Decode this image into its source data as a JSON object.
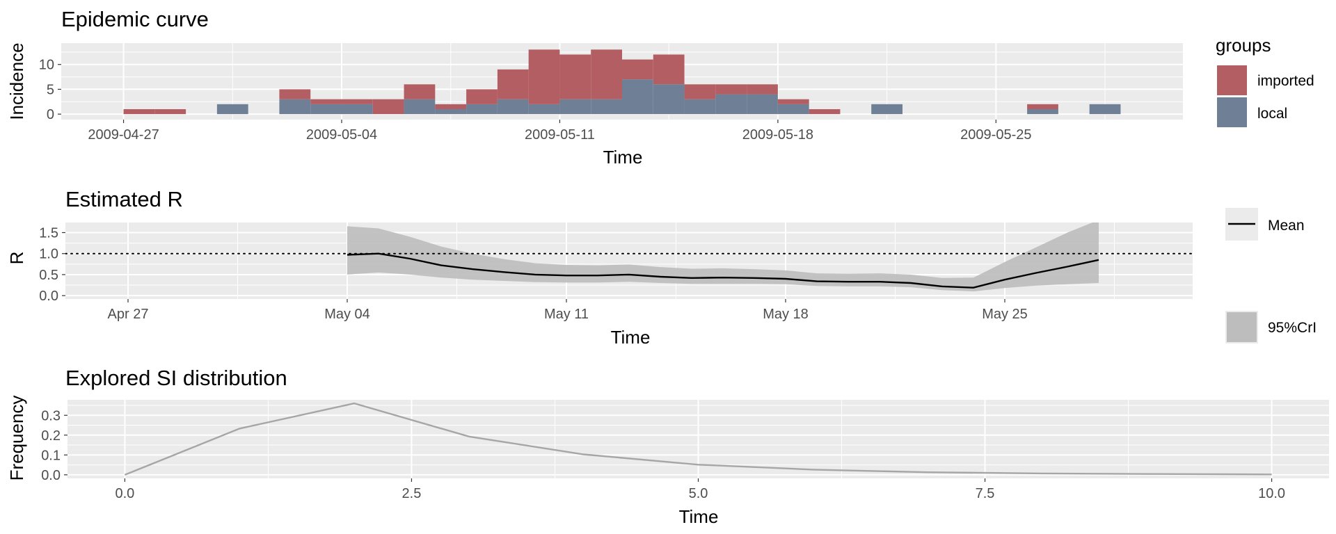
{
  "chart_data": [
    {
      "type": "bar",
      "title": "Epidemic curve",
      "xlabel": "Time",
      "ylabel": "Incidence",
      "ylim": [
        -1.1,
        14.3
      ],
      "yticks": [
        "0",
        "5",
        "10"
      ],
      "xticks": [
        "2009-04-27",
        "2009-05-04",
        "2009-05-11",
        "2009-05-18",
        "2009-05-25"
      ],
      "xlim": [
        "2009-04-25",
        "2009-05-31"
      ],
      "stacked": true,
      "legend": {
        "title": "groups",
        "position": "right"
      },
      "dates": [
        "2009-04-27",
        "2009-04-28",
        "2009-04-29",
        "2009-04-30",
        "2009-05-01",
        "2009-05-02",
        "2009-05-03",
        "2009-05-04",
        "2009-05-05",
        "2009-05-06",
        "2009-05-07",
        "2009-05-08",
        "2009-05-09",
        "2009-05-10",
        "2009-05-11",
        "2009-05-12",
        "2009-05-13",
        "2009-05-14",
        "2009-05-15",
        "2009-05-16",
        "2009-05-17",
        "2009-05-18",
        "2009-05-19",
        "2009-05-20",
        "2009-05-21",
        "2009-05-22",
        "2009-05-23",
        "2009-05-24",
        "2009-05-25",
        "2009-05-26",
        "2009-05-27",
        "2009-05-28"
      ],
      "series": [
        {
          "name": "local",
          "color": "#6e7f96",
          "values": [
            0,
            0,
            0,
            2,
            0,
            3,
            2,
            2,
            0,
            3,
            1,
            2,
            3,
            2,
            3,
            3,
            7,
            6,
            3,
            4,
            4,
            2,
            0,
            0,
            2,
            0,
            0,
            0,
            0,
            1,
            0,
            2
          ]
        },
        {
          "name": "imported",
          "color": "#b35e62",
          "values": [
            1,
            1,
            0,
            0,
            0,
            2,
            1,
            1,
            3,
            3,
            1,
            3,
            6,
            11,
            9,
            10,
            4,
            6,
            3,
            2,
            2,
            1,
            1,
            0,
            0,
            0,
            0,
            0,
            0,
            1,
            0,
            0
          ]
        }
      ]
    },
    {
      "type": "line",
      "title": "Estimated R",
      "xlabel": "Time",
      "ylabel": "R",
      "ylim": [
        -0.08,
        1.74
      ],
      "yticks": [
        "0.0",
        "0.5",
        "1.0",
        "1.5"
      ],
      "xticks": [
        "Apr 27",
        "May 04",
        "May 11",
        "May 18",
        "May 25"
      ],
      "xlim": [
        "2009-04-25",
        "2009-05-31"
      ],
      "reference_line": {
        "y": 1.0,
        "style": "dotted"
      },
      "legend": [
        {
          "label": "Mean",
          "kind": "line",
          "color": "#000000"
        },
        {
          "label": "95%CrI",
          "kind": "band",
          "color": "#bdbdbd"
        }
      ],
      "dates": [
        "2009-05-04",
        "2009-05-05",
        "2009-05-06",
        "2009-05-07",
        "2009-05-08",
        "2009-05-09",
        "2009-05-10",
        "2009-05-11",
        "2009-05-12",
        "2009-05-13",
        "2009-05-14",
        "2009-05-15",
        "2009-05-16",
        "2009-05-17",
        "2009-05-18",
        "2009-05-19",
        "2009-05-20",
        "2009-05-21",
        "2009-05-22",
        "2009-05-23",
        "2009-05-24",
        "2009-05-25",
        "2009-05-26",
        "2009-05-27",
        "2009-05-28"
      ],
      "series": [
        {
          "name": "Mean",
          "values": [
            0.97,
            1.0,
            0.88,
            0.72,
            0.63,
            0.56,
            0.5,
            0.48,
            0.48,
            0.5,
            0.45,
            0.42,
            0.43,
            0.42,
            0.4,
            0.34,
            0.33,
            0.33,
            0.3,
            0.22,
            0.19,
            0.38,
            0.54,
            0.69,
            0.85
          ]
        },
        {
          "name": "95%CrI lower",
          "values": [
            0.5,
            0.55,
            0.5,
            0.43,
            0.38,
            0.35,
            0.32,
            0.31,
            0.31,
            0.33,
            0.3,
            0.28,
            0.28,
            0.28,
            0.27,
            0.23,
            0.22,
            0.22,
            0.2,
            0.13,
            0.1,
            0.18,
            0.24,
            0.27,
            0.3
          ]
        },
        {
          "name": "95%CrI upper",
          "values": [
            1.65,
            1.6,
            1.4,
            1.17,
            1.0,
            0.87,
            0.77,
            0.73,
            0.72,
            0.74,
            0.68,
            0.64,
            0.65,
            0.63,
            0.6,
            0.53,
            0.52,
            0.53,
            0.5,
            0.42,
            0.43,
            0.8,
            1.15,
            1.5,
            1.8
          ]
        }
      ]
    },
    {
      "type": "line",
      "title": "Explored SI distribution",
      "xlabel": "Time",
      "ylabel": "Frequency",
      "xlim": [
        -0.5,
        10.5
      ],
      "ylim": [
        -0.018,
        0.378
      ],
      "xticks": [
        "0.0",
        "2.5",
        "5.0",
        "7.5",
        "10.0"
      ],
      "yticks": [
        "0.0",
        "0.1",
        "0.2",
        "0.3"
      ],
      "series": [
        {
          "name": "SI",
          "color": "#a6a6a6",
          "x": [
            0,
            1,
            2,
            3,
            4,
            5,
            6,
            7,
            8,
            9,
            10
          ],
          "values": [
            0,
            0.233,
            0.36,
            0.193,
            0.103,
            0.051,
            0.026,
            0.013,
            0.007,
            0.004,
            0.002
          ]
        }
      ]
    }
  ]
}
